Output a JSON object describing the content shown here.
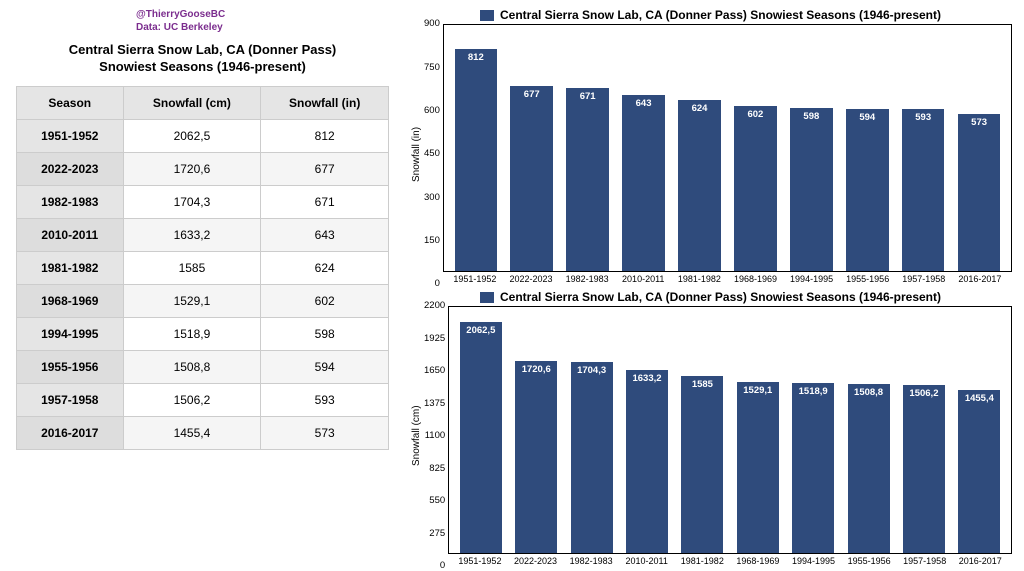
{
  "credits": {
    "handle": "@ThierryGooseBC",
    "source": "Data: UC Berkeley",
    "handle_color": "#7b2d8e",
    "source_color": "#7b2d8e"
  },
  "table": {
    "title_line1": "Central Sierra Snow Lab, CA (Donner Pass)",
    "title_line2": "Snowiest Seasons (1946-present)",
    "columns": [
      "Season",
      "Snowfall (cm)",
      "Snowfall (in)"
    ],
    "rows": [
      [
        "1951-1952",
        "2062,5",
        "812"
      ],
      [
        "2022-2023",
        "1720,6",
        "677"
      ],
      [
        "1982-1983",
        "1704,3",
        "671"
      ],
      [
        "2010-2011",
        "1633,2",
        "643"
      ],
      [
        "1981-1982",
        "1585",
        "624"
      ],
      [
        "1968-1969",
        "1529,1",
        "602"
      ],
      [
        "1994-1995",
        "1518,9",
        "598"
      ],
      [
        "1955-1956",
        "1508,8",
        "594"
      ],
      [
        "1957-1958",
        "1506,2",
        "593"
      ],
      [
        "2016-2017",
        "1455,4",
        "573"
      ]
    ]
  },
  "chart_in": {
    "type": "bar",
    "title": "Central Sierra Snow Lab, CA (Donner Pass) Snowiest Seasons (1946-present)",
    "ylabel": "Snowfall (in)",
    "ylim": [
      0,
      900
    ],
    "ytick_step": 150,
    "yticks": [
      "900",
      "750",
      "600",
      "450",
      "300",
      "150",
      "0"
    ],
    "categories": [
      "1951-1952",
      "2022-2023",
      "1982-1983",
      "2010-2011",
      "1981-1982",
      "1968-1969",
      "1994-1995",
      "1955-1956",
      "1957-1958",
      "2016-2017"
    ],
    "values": [
      812,
      677,
      671,
      643,
      624,
      602,
      598,
      594,
      593,
      573
    ],
    "value_labels": [
      "812",
      "677",
      "671",
      "643",
      "624",
      "602",
      "598",
      "594",
      "593",
      "573"
    ],
    "bar_color": "#2f4b7c",
    "label_color": "#ffffff",
    "axis_color": "#000000",
    "background_color": "#ffffff",
    "title_fontsize": 12,
    "tick_fontsize": 9.5,
    "bar_width": 0.82
  },
  "chart_cm": {
    "type": "bar",
    "title": "Central Sierra Snow Lab, CA (Donner Pass) Snowiest Seasons (1946-present)",
    "ylabel": "Snowfall (cm)",
    "ylim": [
      0,
      2200
    ],
    "ytick_step": 275,
    "yticks": [
      "2200",
      "1925",
      "1650",
      "1375",
      "1100",
      "825",
      "550",
      "275",
      "0"
    ],
    "categories": [
      "1951-1952",
      "2022-2023",
      "1982-1983",
      "2010-2011",
      "1981-1982",
      "1968-1969",
      "1994-1995",
      "1955-1956",
      "1957-1958",
      "2016-2017"
    ],
    "values": [
      2062.5,
      1720.6,
      1704.3,
      1633.2,
      1585,
      1529.1,
      1518.9,
      1508.8,
      1506.2,
      1455.4
    ],
    "value_labels": [
      "2062,5",
      "1720,6",
      "1704,3",
      "1633,2",
      "1585",
      "1529,1",
      "1518,9",
      "1508,8",
      "1506,2",
      "1455,4"
    ],
    "bar_color": "#2f4b7c",
    "label_color": "#ffffff",
    "axis_color": "#000000",
    "background_color": "#ffffff",
    "title_fontsize": 12,
    "tick_fontsize": 9.5,
    "bar_width": 0.82
  }
}
